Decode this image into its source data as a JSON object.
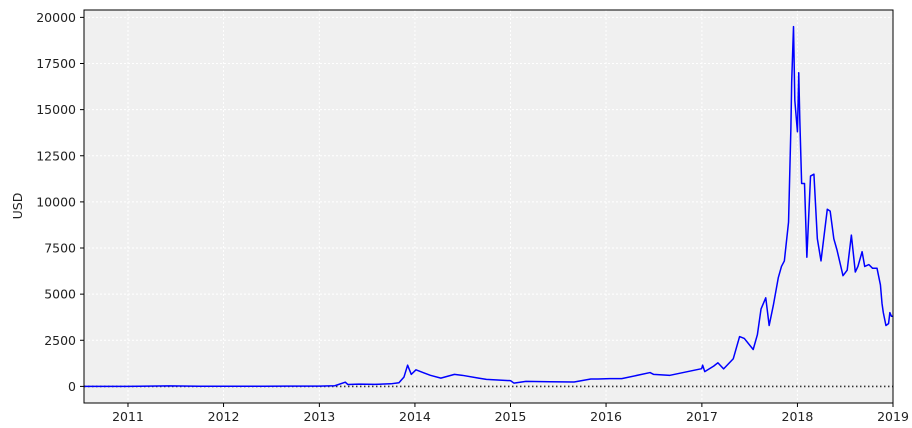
{
  "chart_data": {
    "type": "line",
    "title": "",
    "xlabel": "",
    "ylabel": "USD",
    "xlim": [
      "2010-07-17",
      "2019-01-01"
    ],
    "ylim": [
      -900,
      20400
    ],
    "grid": true,
    "legend": "none",
    "x_ticks": [
      "2011",
      "2012",
      "2013",
      "2014",
      "2015",
      "2016",
      "2017",
      "2018",
      "2019"
    ],
    "y_ticks": [
      0,
      2500,
      5000,
      7500,
      10000,
      12500,
      15000,
      17500,
      20000
    ],
    "zero_line": {
      "y": 0,
      "style": "dotted",
      "color": "#333333"
    },
    "series": [
      {
        "color": "#0000ff",
        "x": [
          "2010-07-17",
          "2011-01-01",
          "2011-06-08",
          "2011-10-01",
          "2012-01-01",
          "2012-06-01",
          "2012-09-01",
          "2013-01-01",
          "2013-03-01",
          "2013-04-10",
          "2013-04-20",
          "2013-06-01",
          "2013-08-01",
          "2013-10-01",
          "2013-11-01",
          "2013-11-20",
          "2013-12-04",
          "2013-12-18",
          "2014-01-05",
          "2014-02-01",
          "2014-03-01",
          "2014-04-10",
          "2014-06-01",
          "2014-07-01",
          "2014-09-01",
          "2014-10-01",
          "2015-01-01",
          "2015-01-14",
          "2015-03-01",
          "2015-06-01",
          "2015-09-01",
          "2015-11-04",
          "2015-12-01",
          "2016-01-15",
          "2016-03-01",
          "2016-06-17",
          "2016-07-01",
          "2016-09-01",
          "2016-12-31",
          "2017-01-04",
          "2017-01-12",
          "2017-02-15",
          "2017-03-03",
          "2017-03-25",
          "2017-05-01",
          "2017-05-25",
          "2017-06-12",
          "2017-07-16",
          "2017-08-01",
          "2017-08-15",
          "2017-09-02",
          "2017-09-15",
          "2017-10-01",
          "2017-10-20",
          "2017-11-01",
          "2017-11-12",
          "2017-11-28",
          "2017-12-07",
          "2017-12-10",
          "2017-12-17",
          "2017-12-22",
          "2018-01-01",
          "2018-01-06",
          "2018-01-10",
          "2018-01-17",
          "2018-01-28",
          "2018-02-06",
          "2018-02-20",
          "2018-03-05",
          "2018-03-18",
          "2018-04-01",
          "2018-04-25",
          "2018-05-06",
          "2018-05-20",
          "2018-06-01",
          "2018-06-24",
          "2018-07-10",
          "2018-07-26",
          "2018-08-10",
          "2018-08-20",
          "2018-09-05",
          "2018-09-15",
          "2018-10-01",
          "2018-10-15",
          "2018-11-01",
          "2018-11-14",
          "2018-11-20",
          "2018-11-25",
          "2018-12-05",
          "2018-12-15",
          "2018-12-20",
          "2018-12-26",
          "2019-01-01"
        ],
        "y": [
          0.07,
          0.3,
          29,
          4.8,
          5.3,
          5.3,
          11.5,
          13.5,
          34,
          230,
          100,
          120,
          110,
          140,
          200,
          500,
          1150,
          650,
          900,
          750,
          600,
          450,
          650,
          600,
          450,
          380,
          310,
          180,
          270,
          250,
          240,
          400,
          400,
          420,
          420,
          750,
          650,
          600,
          960,
          1150,
          800,
          1100,
          1280,
          950,
          1500,
          2700,
          2600,
          2000,
          2800,
          4200,
          4800,
          3300,
          4400,
          5900,
          6500,
          6800,
          8900,
          14000,
          16500,
          19500,
          15500,
          13800,
          17000,
          14500,
          11000,
          11000,
          7000,
          11400,
          11500,
          8000,
          6800,
          9600,
          9500,
          8000,
          7400,
          6000,
          6300,
          8200,
          6200,
          6500,
          7300,
          6500,
          6600,
          6400,
          6400,
          5500,
          4500,
          4000,
          3300,
          3400,
          4000,
          3800,
          3800
        ]
      }
    ]
  }
}
